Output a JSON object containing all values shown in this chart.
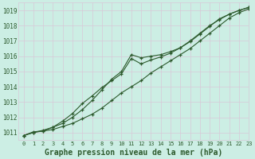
{
  "title": "Graphe pression niveau de la mer (hPa)",
  "bg_color": "#cceee4",
  "grid_color": "#d8c8d8",
  "line_color": "#2d5a2d",
  "xlim": [
    -0.5,
    23
  ],
  "ylim": [
    1010.5,
    1019.5
  ],
  "yticks": [
    1011,
    1012,
    1013,
    1014,
    1015,
    1016,
    1017,
    1018,
    1019
  ],
  "xticks": [
    0,
    1,
    2,
    3,
    4,
    5,
    6,
    7,
    8,
    9,
    10,
    11,
    12,
    13,
    14,
    15,
    16,
    17,
    18,
    19,
    20,
    21,
    22,
    23
  ],
  "line1_x": [
    0,
    1,
    2,
    3,
    4,
    5,
    6,
    7,
    8,
    9,
    10,
    11,
    12,
    13,
    14,
    15,
    16,
    17,
    18,
    19,
    20,
    21,
    22,
    23
  ],
  "line1_y": [
    1010.8,
    1011.0,
    1011.1,
    1011.2,
    1011.4,
    1011.6,
    1011.9,
    1012.2,
    1012.6,
    1013.1,
    1013.6,
    1014.0,
    1014.4,
    1014.9,
    1015.3,
    1015.7,
    1016.1,
    1016.5,
    1017.0,
    1017.5,
    1018.0,
    1018.5,
    1018.85,
    1019.1
  ],
  "line2_x": [
    0,
    1,
    2,
    3,
    4,
    5,
    6,
    7,
    8,
    9,
    10,
    11,
    12,
    13,
    14,
    15,
    16,
    17,
    18,
    19,
    20,
    21,
    22,
    23
  ],
  "line2_y": [
    1010.8,
    1011.0,
    1011.15,
    1011.35,
    1011.6,
    1012.0,
    1012.5,
    1013.1,
    1013.8,
    1014.5,
    1015.0,
    1016.1,
    1015.9,
    1016.0,
    1016.1,
    1016.3,
    1016.55,
    1017.0,
    1017.5,
    1018.0,
    1018.4,
    1018.75,
    1019.0,
    1019.2
  ],
  "line3_x": [
    0,
    1,
    2,
    3,
    4,
    5,
    6,
    7,
    8,
    9,
    10,
    11,
    12,
    13,
    14,
    15,
    16,
    17,
    18,
    19,
    20,
    21,
    22,
    23
  ],
  "line3_y": [
    1010.8,
    1011.05,
    1011.1,
    1011.35,
    1011.75,
    1012.25,
    1012.9,
    1013.4,
    1013.95,
    1014.4,
    1014.85,
    1015.85,
    1015.5,
    1015.75,
    1015.95,
    1016.2,
    1016.55,
    1016.95,
    1017.45,
    1017.95,
    1018.45,
    1018.75,
    1019.0,
    1019.2
  ],
  "marker": "+",
  "markersize": 3.5,
  "linewidth": 0.8,
  "markeredgewidth": 0.9,
  "ytick_fontsize": 5.5,
  "xtick_fontsize": 5.0,
  "title_fontsize": 7.0
}
